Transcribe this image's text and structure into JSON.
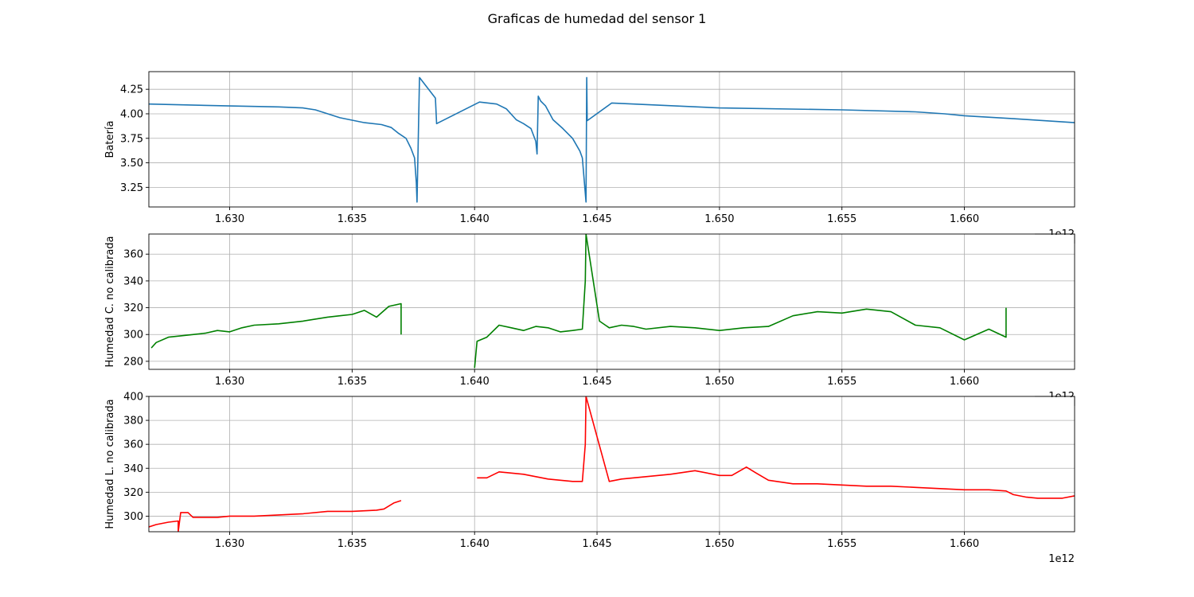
{
  "figure": {
    "title": "Graficas de humedad del sensor 1"
  },
  "chart_data": [
    {
      "type": "line",
      "ylabel": "Batería",
      "offset_label": "1e12",
      "xlim": [
        1.6267,
        1.6645
      ],
      "ylim": [
        3.05,
        4.43
      ],
      "x_ticks": [
        1.63,
        1.635,
        1.64,
        1.645,
        1.65,
        1.655,
        1.66
      ],
      "x_tick_labels": [
        "1.630",
        "1.635",
        "1.640",
        "1.645",
        "1.650",
        "1.655",
        "1.660"
      ],
      "y_ticks": [
        3.25,
        3.5,
        3.75,
        4.0,
        4.25
      ],
      "y_tick_labels": [
        "3.25",
        "3.50",
        "3.75",
        "4.00",
        "4.25"
      ],
      "grid": true,
      "series": [
        {
          "color": "#1f77b4",
          "x": [
            1.6267,
            1.63,
            1.632,
            1.633,
            1.6335,
            1.6345,
            1.6355,
            1.6362,
            1.6366,
            1.6369,
            1.6372,
            1.6374,
            1.63755,
            1.63762,
            1.63765,
            1.63775,
            1.6384,
            1.63845,
            1.6402,
            1.6409,
            1.6413,
            1.6417,
            1.642,
            1.6423,
            1.6425,
            1.64255,
            1.6426,
            1.6427,
            1.6429,
            1.6432,
            1.6436,
            1.644,
            1.6443,
            1.6444,
            1.64455,
            1.64458,
            1.6446,
            1.6456,
            1.65,
            1.655,
            1.658,
            1.6592,
            1.66,
            1.662,
            1.6645
          ],
          "y": [
            4.1,
            4.08,
            4.07,
            4.06,
            4.04,
            3.96,
            3.91,
            3.89,
            3.86,
            3.8,
            3.75,
            3.65,
            3.55,
            3.3,
            3.1,
            4.37,
            4.16,
            3.9,
            4.12,
            4.1,
            4.05,
            3.94,
            3.9,
            3.85,
            3.72,
            3.59,
            4.18,
            4.13,
            4.08,
            3.94,
            3.85,
            3.75,
            3.62,
            3.55,
            3.1,
            4.37,
            3.93,
            4.11,
            4.06,
            4.04,
            4.02,
            4.0,
            3.98,
            3.95,
            3.91
          ]
        }
      ]
    },
    {
      "type": "line",
      "ylabel": "Humedad C. no calibrada",
      "offset_label": "1e12",
      "xlim": [
        1.6267,
        1.6645
      ],
      "ylim": [
        274,
        375
      ],
      "x_ticks": [
        1.63,
        1.635,
        1.64,
        1.645,
        1.65,
        1.655,
        1.66
      ],
      "x_tick_labels": [
        "1.630",
        "1.635",
        "1.640",
        "1.645",
        "1.650",
        "1.655",
        "1.660"
      ],
      "y_ticks": [
        280,
        300,
        320,
        340,
        360
      ],
      "y_tick_labels": [
        "280",
        "300",
        "320",
        "340",
        "360"
      ],
      "grid": true,
      "series": [
        {
          "color": "#008000",
          "segments": [
            {
              "x": [
                1.6268,
                1.627,
                1.6275,
                1.628,
                1.629,
                1.6295,
                1.63,
                1.6305,
                1.631,
                1.632,
                1.633,
                1.634,
                1.6345,
                1.635,
                1.6355,
                1.636,
                1.6365,
                1.637,
                1.637
              ],
              "y": [
                290,
                294,
                298,
                299,
                301,
                303,
                302,
                305,
                307,
                308,
                310,
                313,
                314,
                315,
                318,
                313,
                321,
                323,
                300
              ]
            },
            {
              "x": [
                1.64,
                1.6401,
                1.6405,
                1.641,
                1.6415,
                1.642,
                1.6425,
                1.643,
                1.6435,
                1.644,
                1.6444,
                1.64452,
                1.64455,
                1.6451,
                1.6455,
                1.646,
                1.6465,
                1.647,
                1.648,
                1.649,
                1.65,
                1.651,
                1.652,
                1.653,
                1.654,
                1.655,
                1.656,
                1.657,
                1.658,
                1.659,
                1.66,
                1.661,
                1.6617,
                1.6617
              ],
              "y": [
                275,
                295,
                298,
                307,
                305,
                303,
                306,
                305,
                302,
                303,
                304,
                340,
                375,
                310,
                305,
                307,
                306,
                304,
                306,
                305,
                303,
                305,
                306,
                314,
                317,
                316,
                319,
                317,
                307,
                305,
                296,
                304,
                298,
                320
              ]
            }
          ]
        }
      ]
    },
    {
      "type": "line",
      "ylabel": "Humedad L. no calibrada",
      "offset_label": "1e12",
      "xlim": [
        1.6267,
        1.6645
      ],
      "ylim": [
        287,
        400
      ],
      "x_ticks": [
        1.63,
        1.635,
        1.64,
        1.645,
        1.65,
        1.655,
        1.66
      ],
      "x_tick_labels": [
        "1.630",
        "1.635",
        "1.640",
        "1.645",
        "1.650",
        "1.655",
        "1.660"
      ],
      "y_ticks": [
        300,
        320,
        340,
        360,
        380,
        400
      ],
      "y_tick_labels": [
        "300",
        "320",
        "340",
        "360",
        "380",
        "400"
      ],
      "grid": true,
      "series": [
        {
          "color": "#ff0000",
          "segments": [
            {
              "x": [
                1.6267,
                1.627,
                1.6275,
                1.6279,
                1.6279,
                1.628,
                1.6283,
                1.6285,
                1.629,
                1.6295,
                1.63,
                1.631,
                1.632,
                1.633,
                1.634,
                1.635,
                1.636,
                1.6363,
                1.6367,
                1.637
              ],
              "y": [
                291,
                293,
                295,
                296,
                287,
                303,
                303,
                299,
                299,
                299,
                300,
                300,
                301,
                302,
                304,
                304,
                305,
                306,
                311,
                313
              ]
            },
            {
              "x": [
                1.6401,
                1.6405,
                1.641,
                1.6415,
                1.642,
                1.6425,
                1.643,
                1.6435,
                1.644,
                1.6444,
                1.64452,
                1.64455,
                1.6455,
                1.646,
                1.6465,
                1.647,
                1.648,
                1.649,
                1.65,
                1.6505,
                1.6511,
                1.6515,
                1.652,
                1.653,
                1.654,
                1.655,
                1.656,
                1.657,
                1.658,
                1.659,
                1.66,
                1.661,
                1.6617,
                1.662,
                1.6625,
                1.663,
                1.6635,
                1.664,
                1.6645
              ],
              "y": [
                332,
                332,
                337,
                336,
                335,
                333,
                331,
                330,
                329,
                329,
                360,
                400,
                329,
                331,
                332,
                333,
                335,
                338,
                334,
                334,
                341,
                336,
                330,
                327,
                327,
                326,
                325,
                325,
                324,
                323,
                322,
                322,
                321,
                318,
                316,
                315,
                315,
                315,
                317
              ]
            }
          ]
        }
      ]
    }
  ]
}
